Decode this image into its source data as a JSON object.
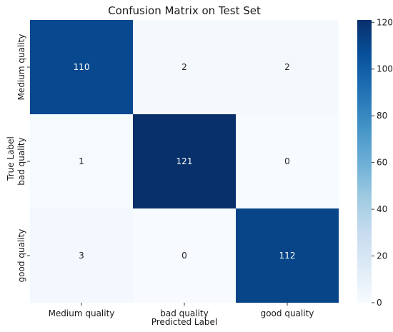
{
  "chart_data": {
    "type": "heatmap",
    "title": "Confusion Matrix on Test Set",
    "xlabel": "Predicted Label",
    "ylabel": "True Label",
    "x_categories": [
      "Medium quality",
      "bad quality",
      "good quality"
    ],
    "y_categories": [
      "Medium quality",
      "bad quality",
      "good quality"
    ],
    "values": [
      [
        110,
        2,
        2
      ],
      [
        1,
        121,
        0
      ],
      [
        3,
        0,
        112
      ]
    ],
    "colorbar": {
      "min": 0,
      "max": 121,
      "ticks": [
        0,
        20,
        40,
        60,
        80,
        100,
        120
      ],
      "colormap": "Blues"
    },
    "colors": {
      "low": "#f7fbff",
      "high": "#08306b"
    }
  }
}
